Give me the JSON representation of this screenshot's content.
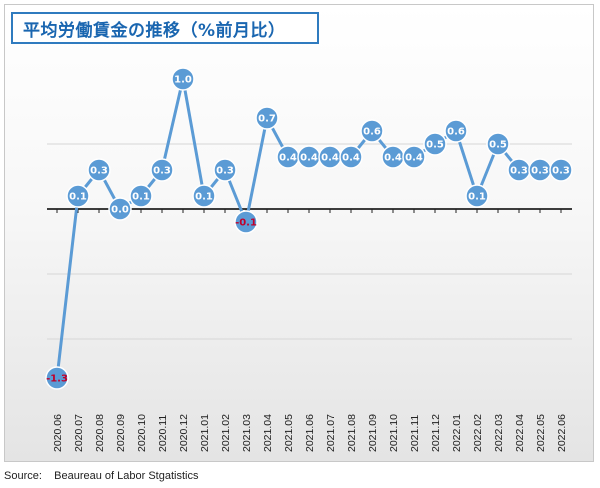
{
  "title": "平均労働賃金の推移（%前月比）",
  "source_label": "Source:",
  "source_text": "Beaureau of Labor Stgatistics",
  "colors": {
    "line": "#5b9bd5",
    "marker_fill": "#5b9bd5",
    "marker_stroke": "#ffffff",
    "label_positive": "#ffffff",
    "label_negative": "#c0002a",
    "title_border": "#2f7bbf",
    "title_text": "#1a66b0"
  },
  "chart_data": {
    "type": "line",
    "title": "平均労働賃金の推移（%前月比）",
    "xlabel": "",
    "ylabel": "",
    "ylim": [
      -1.5,
      1.2
    ],
    "categories": [
      "2020.06",
      "2020.07",
      "2020.08",
      "2020.09",
      "2020.10",
      "2020.11",
      "2020.12",
      "2021.01",
      "2021.02",
      "2021.03",
      "2021.04",
      "2021.05",
      "2021.06",
      "2021.07",
      "2021.08",
      "2021.09",
      "2021.10",
      "2021.11",
      "2021.12",
      "2022.01",
      "2022.02",
      "2022.03",
      "2022.04",
      "2022.05",
      "2022.06"
    ],
    "series": [
      {
        "values": [
          -1.3,
          0.1,
          0.3,
          0.0,
          0.1,
          0.3,
          1.0,
          0.1,
          0.3,
          -0.1,
          0.7,
          0.4,
          0.4,
          0.4,
          0.4,
          0.6,
          0.4,
          0.4,
          0.5,
          0.6,
          0.1,
          0.5,
          0.3,
          0.3,
          0.3
        ],
        "labels": [
          "-1.3",
          "0.1",
          "0.3",
          "0.0",
          "0.1",
          "0.3",
          "1.0",
          "0.1",
          "0.3",
          "-0.1",
          "0.7",
          "0.4",
          "0.4",
          "0.4",
          "0.4",
          "0.6",
          "0.4",
          "0.4",
          "0.5",
          "0.6",
          "0.1",
          "0.5",
          "0.3",
          "0.3",
          "0.3"
        ]
      }
    ],
    "grid": true,
    "legend": "none"
  }
}
